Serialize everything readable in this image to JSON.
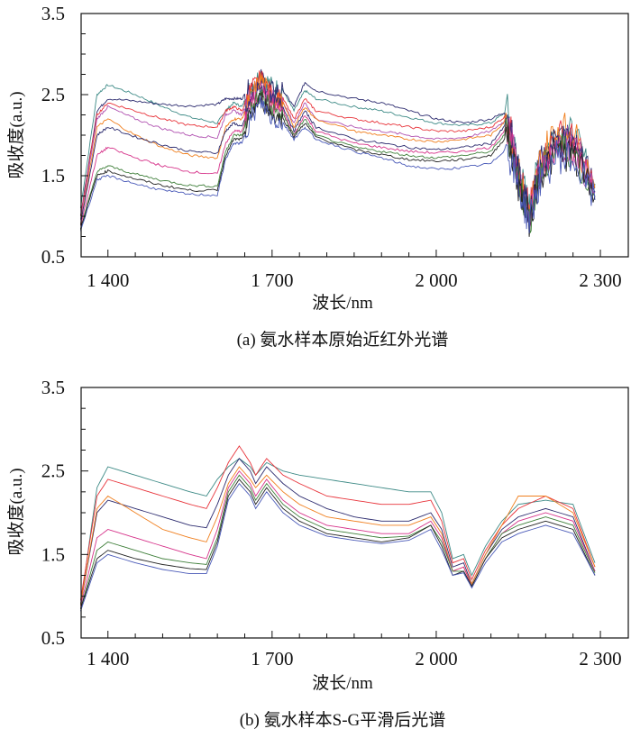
{
  "chart_data": [
    {
      "type": "line",
      "title": "",
      "caption": "(a) 氨水样本原始近红外光谱",
      "xlabel": "波长/nm",
      "ylabel": "吸收度(a.u.)",
      "xlim": [
        1351,
        2351
      ],
      "ylim": [
        0.5,
        3.5
      ],
      "xticks": [
        1400,
        1700,
        2000,
        2300
      ],
      "xtick_labels": [
        "1 400",
        "1 700",
        "2 000",
        "2 300"
      ],
      "yticks": [
        0.5,
        1.5,
        2.5,
        3.5
      ],
      "ytick_labels": [
        "0.5",
        "1.5",
        "2.5",
        "3.5"
      ],
      "grid": false,
      "noisy": true,
      "x": [
        1350,
        1380,
        1400,
        1450,
        1500,
        1550,
        1600,
        1615,
        1630,
        1645,
        1660,
        1680,
        1700,
        1720,
        1740,
        1760,
        1780,
        1850,
        1900,
        1950,
        2000,
        2050,
        2100,
        2130,
        2150,
        2170,
        2190,
        2220,
        2250,
        2290
      ],
      "series": [
        {
          "color": "#3d8a86",
          "values": [
            1.1,
            2.5,
            2.62,
            2.5,
            2.35,
            2.22,
            2.15,
            2.3,
            2.4,
            2.35,
            2.6,
            2.75,
            2.6,
            2.55,
            2.3,
            2.55,
            2.45,
            2.35,
            2.3,
            2.22,
            2.15,
            2.12,
            2.15,
            2.3,
            1.6,
            1.1,
            1.7,
            2.05,
            2.0,
            1.4
          ]
        },
        {
          "color": "#2b2a6e",
          "values": [
            1.0,
            2.3,
            2.45,
            2.42,
            2.38,
            2.36,
            2.38,
            2.45,
            2.45,
            2.45,
            2.6,
            2.7,
            2.55,
            2.55,
            2.35,
            2.65,
            2.55,
            2.45,
            2.4,
            2.3,
            2.2,
            2.15,
            2.2,
            2.3,
            1.55,
            1.05,
            1.65,
            2.0,
            1.95,
            1.35
          ]
        },
        {
          "color": "#e8333a",
          "values": [
            1.0,
            2.25,
            2.4,
            2.3,
            2.2,
            2.12,
            2.1,
            2.3,
            2.35,
            2.3,
            2.55,
            2.7,
            2.5,
            2.45,
            2.2,
            2.45,
            2.3,
            2.2,
            2.15,
            2.1,
            2.05,
            2.05,
            2.1,
            2.25,
            1.55,
            1.05,
            1.6,
            2.0,
            1.95,
            1.35
          ]
        },
        {
          "color": "#b050b0",
          "values": [
            0.95,
            2.2,
            2.35,
            2.2,
            2.08,
            2.0,
            1.97,
            2.25,
            2.3,
            2.25,
            2.5,
            2.65,
            2.45,
            2.4,
            2.15,
            2.4,
            2.2,
            2.1,
            2.05,
            2.0,
            1.95,
            1.97,
            2.05,
            2.2,
            1.5,
            1.0,
            1.6,
            1.95,
            1.9,
            1.3
          ]
        },
        {
          "color": "#f07f1e",
          "values": [
            0.9,
            2.1,
            2.2,
            2.0,
            1.85,
            1.75,
            1.72,
            2.1,
            2.2,
            2.2,
            2.45,
            2.7,
            2.45,
            2.4,
            2.1,
            2.35,
            2.2,
            2.05,
            2.0,
            1.95,
            1.92,
            1.95,
            2.0,
            2.2,
            1.55,
            1.0,
            1.7,
            2.1,
            2.05,
            1.35
          ]
        },
        {
          "color": "#2b2a6e",
          "values": [
            0.9,
            2.0,
            2.1,
            1.98,
            1.88,
            1.8,
            1.78,
            2.05,
            2.15,
            2.1,
            2.4,
            2.6,
            2.4,
            2.35,
            2.05,
            2.3,
            2.1,
            1.95,
            1.9,
            1.85,
            1.82,
            1.85,
            1.9,
            2.15,
            1.5,
            1.0,
            1.6,
            1.95,
            1.9,
            1.3
          ]
        },
        {
          "color": "#d6338a",
          "values": [
            0.88,
            1.75,
            1.85,
            1.72,
            1.62,
            1.55,
            1.52,
            1.9,
            2.05,
            2.05,
            2.35,
            2.55,
            2.35,
            2.3,
            2.0,
            2.25,
            2.05,
            1.9,
            1.85,
            1.8,
            1.78,
            1.8,
            1.85,
            2.1,
            1.45,
            1.0,
            1.55,
            1.9,
            1.85,
            1.3
          ]
        },
        {
          "color": "#3f7f3a",
          "values": [
            0.85,
            1.55,
            1.62,
            1.52,
            1.44,
            1.38,
            1.37,
            1.8,
            2.0,
            2.0,
            2.3,
            2.5,
            2.3,
            2.25,
            2.0,
            2.2,
            2.0,
            1.85,
            1.8,
            1.75,
            1.72,
            1.75,
            1.8,
            2.05,
            1.45,
            0.95,
            1.5,
            1.85,
            1.8,
            1.25
          ]
        },
        {
          "color": "#222222",
          "values": [
            0.85,
            1.5,
            1.56,
            1.46,
            1.38,
            1.32,
            1.32,
            1.75,
            1.95,
            1.95,
            2.25,
            2.45,
            2.25,
            2.2,
            1.98,
            2.15,
            1.98,
            1.82,
            1.76,
            1.7,
            1.68,
            1.7,
            1.75,
            2.0,
            1.4,
            0.95,
            1.5,
            1.8,
            1.75,
            1.25
          ]
        },
        {
          "color": "#4a5ab8",
          "values": [
            0.82,
            1.45,
            1.5,
            1.4,
            1.32,
            1.27,
            1.26,
            1.7,
            1.9,
            1.9,
            2.2,
            2.4,
            2.2,
            2.15,
            1.95,
            2.1,
            1.95,
            1.8,
            1.72,
            1.62,
            1.58,
            1.6,
            1.65,
            1.85,
            1.35,
            0.95,
            1.45,
            1.75,
            1.7,
            1.2
          ]
        }
      ]
    },
    {
      "type": "line",
      "title": "",
      "caption": "(b) 氨水样本S-G平滑后光谱",
      "xlabel": "波长/nm",
      "ylabel": "吸收度(a.u.)",
      "xlim": [
        1351,
        2351
      ],
      "ylim": [
        0.5,
        3.5
      ],
      "xticks": [
        1400,
        1700,
        2000,
        2300
      ],
      "xtick_labels": [
        "1 400",
        "1 700",
        "2 000",
        "2 300"
      ],
      "yticks": [
        0.5,
        1.5,
        2.5,
        3.5
      ],
      "ytick_labels": [
        "0.5",
        "1.5",
        "2.5",
        "3.5"
      ],
      "grid": false,
      "noisy": false,
      "x": [
        1350,
        1380,
        1400,
        1450,
        1500,
        1550,
        1580,
        1600,
        1620,
        1640,
        1660,
        1670,
        1690,
        1720,
        1750,
        1800,
        1850,
        1900,
        1950,
        1990,
        2010,
        2030,
        2050,
        2065,
        2090,
        2120,
        2150,
        2200,
        2250,
        2290
      ],
      "series": [
        {
          "color": "#3d8a86",
          "values": [
            0.9,
            2.3,
            2.55,
            2.45,
            2.35,
            2.25,
            2.2,
            2.4,
            2.55,
            2.65,
            2.55,
            2.45,
            2.6,
            2.5,
            2.45,
            2.4,
            2.35,
            2.3,
            2.25,
            2.25,
            2.0,
            1.45,
            1.5,
            1.25,
            1.6,
            1.9,
            2.1,
            2.15,
            2.1,
            1.4
          ]
        },
        {
          "color": "#e8333a",
          "values": [
            0.95,
            2.2,
            2.4,
            2.3,
            2.2,
            2.1,
            2.05,
            2.3,
            2.6,
            2.8,
            2.6,
            2.45,
            2.65,
            2.45,
            2.35,
            2.2,
            2.15,
            2.1,
            2.1,
            2.15,
            1.9,
            1.4,
            1.45,
            1.2,
            1.55,
            1.85,
            2.05,
            2.2,
            2.05,
            1.35
          ]
        },
        {
          "color": "#2b2a6e",
          "values": [
            0.9,
            2.0,
            2.15,
            2.05,
            1.95,
            1.85,
            1.82,
            2.1,
            2.45,
            2.65,
            2.5,
            2.35,
            2.55,
            2.35,
            2.2,
            2.05,
            1.95,
            1.9,
            1.9,
            2.0,
            1.8,
            1.35,
            1.4,
            1.15,
            1.5,
            1.8,
            1.95,
            2.05,
            1.95,
            1.3
          ]
        },
        {
          "color": "#f07f1e",
          "values": [
            0.9,
            2.05,
            2.2,
            2.0,
            1.8,
            1.7,
            1.65,
            1.95,
            2.35,
            2.55,
            2.4,
            2.3,
            2.45,
            2.25,
            2.1,
            1.95,
            1.9,
            1.85,
            1.85,
            1.95,
            1.75,
            1.3,
            1.35,
            1.15,
            1.5,
            1.85,
            2.2,
            2.2,
            2.0,
            1.35
          ]
        },
        {
          "color": "#d6338a",
          "values": [
            0.88,
            1.7,
            1.8,
            1.7,
            1.6,
            1.5,
            1.45,
            1.8,
            2.3,
            2.5,
            2.35,
            2.2,
            2.4,
            2.15,
            2.0,
            1.85,
            1.8,
            1.75,
            1.75,
            1.9,
            1.7,
            1.3,
            1.35,
            1.12,
            1.45,
            1.75,
            1.9,
            2.0,
            1.9,
            1.3
          ]
        },
        {
          "color": "#3f7f3a",
          "values": [
            0.85,
            1.55,
            1.65,
            1.55,
            1.45,
            1.4,
            1.38,
            1.7,
            2.25,
            2.45,
            2.3,
            2.15,
            2.35,
            2.1,
            1.95,
            1.8,
            1.75,
            1.7,
            1.72,
            1.85,
            1.65,
            1.3,
            1.3,
            1.12,
            1.45,
            1.75,
            1.85,
            1.95,
            1.85,
            1.28
          ]
        },
        {
          "color": "#222222",
          "values": [
            0.85,
            1.45,
            1.55,
            1.45,
            1.38,
            1.33,
            1.32,
            1.65,
            2.2,
            2.4,
            2.25,
            2.1,
            2.3,
            2.05,
            1.9,
            1.75,
            1.7,
            1.65,
            1.7,
            1.85,
            1.6,
            1.25,
            1.3,
            1.12,
            1.45,
            1.7,
            1.8,
            1.9,
            1.8,
            1.25
          ]
        },
        {
          "color": "#4a5ab8",
          "values": [
            0.82,
            1.4,
            1.5,
            1.4,
            1.32,
            1.27,
            1.27,
            1.6,
            2.15,
            2.35,
            2.2,
            2.05,
            2.25,
            2.0,
            1.85,
            1.72,
            1.67,
            1.63,
            1.67,
            1.8,
            1.55,
            1.25,
            1.28,
            1.1,
            1.4,
            1.65,
            1.75,
            1.85,
            1.75,
            1.25
          ]
        }
      ]
    }
  ]
}
